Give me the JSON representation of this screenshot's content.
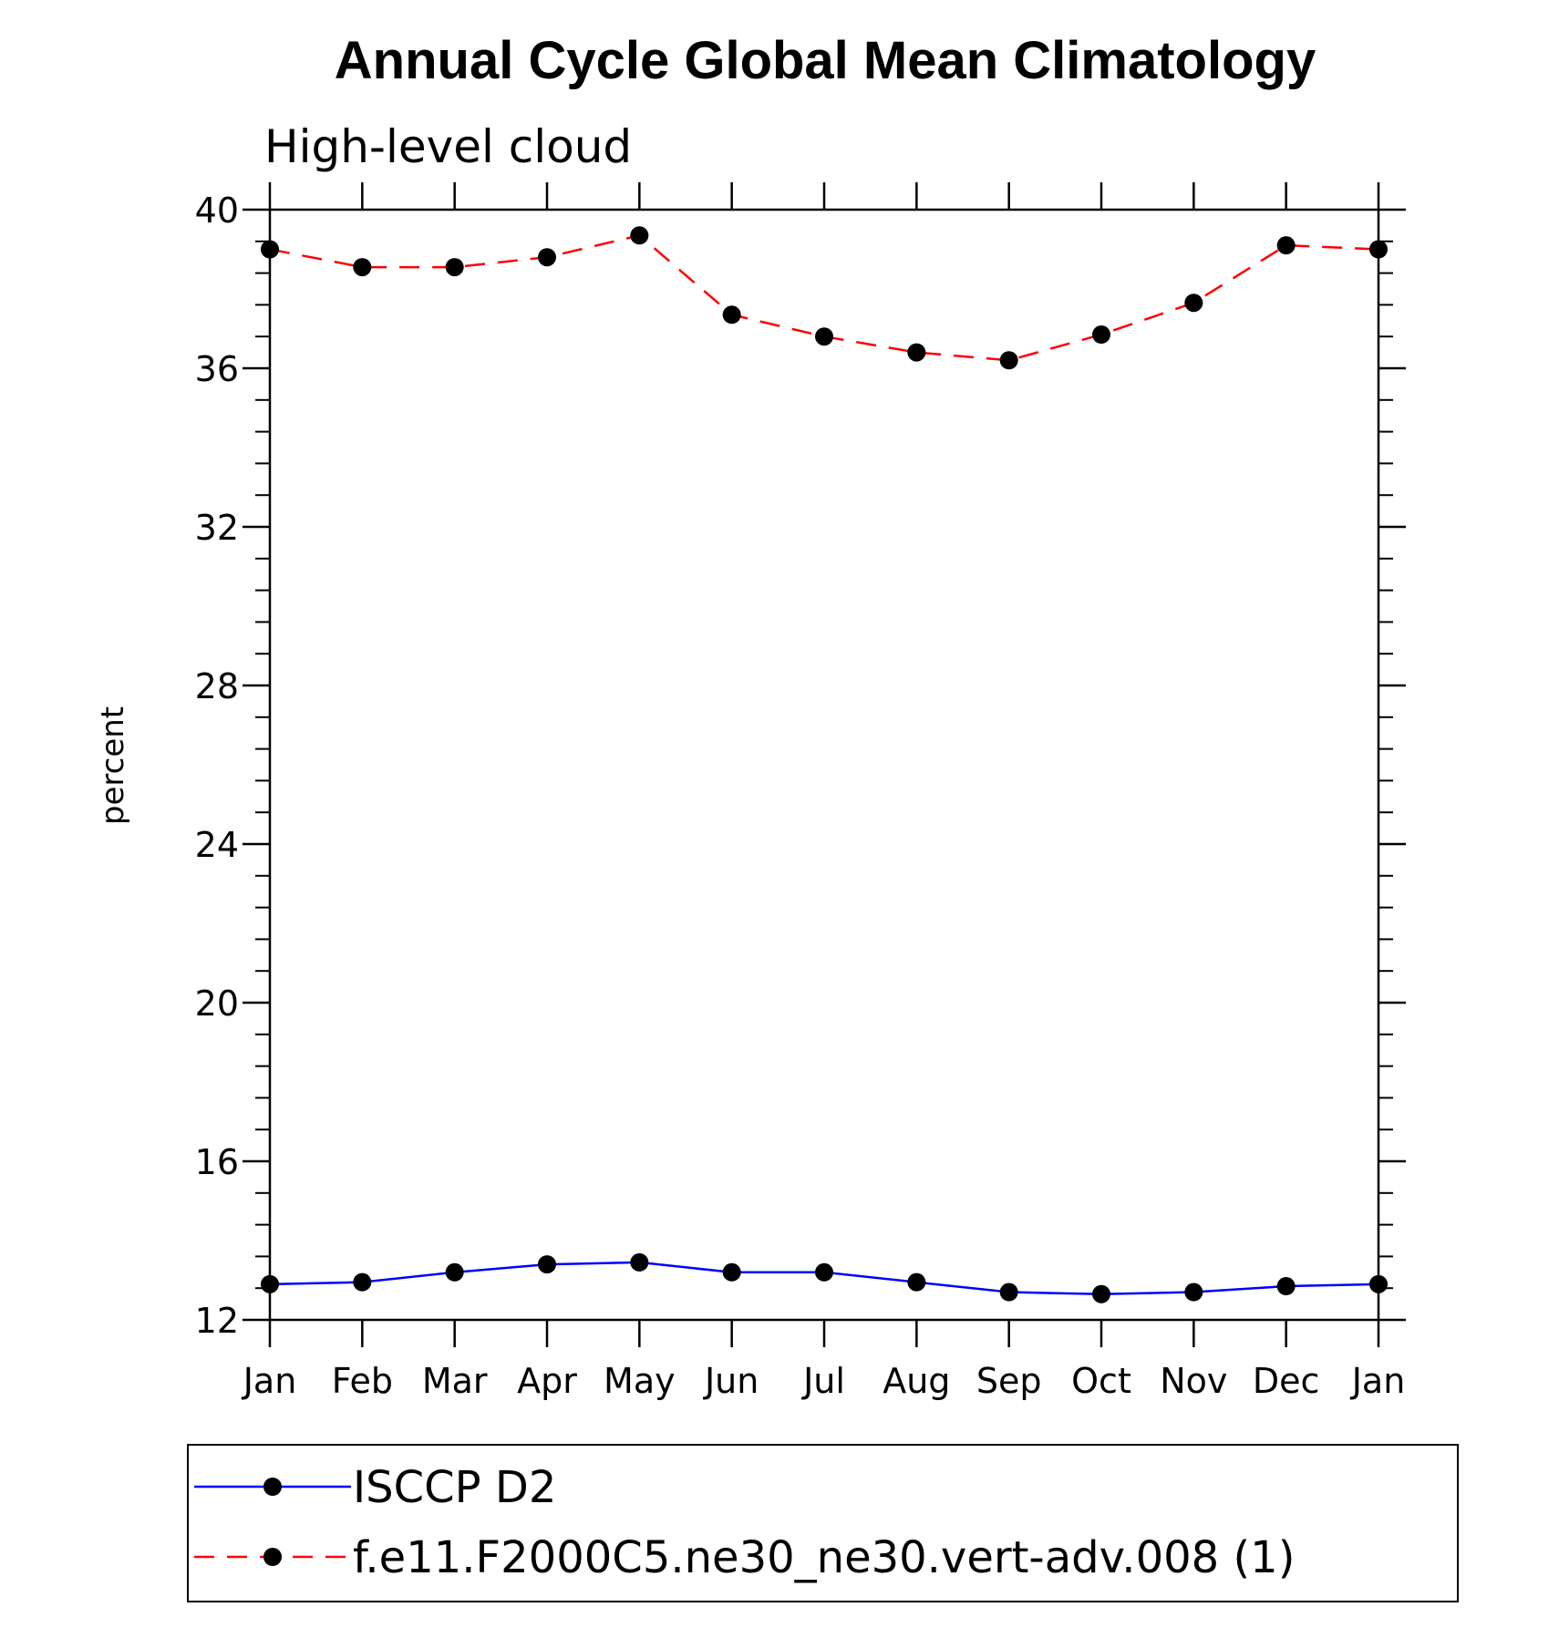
{
  "chart_data": {
    "type": "line",
    "title": "Annual Cycle Global Mean Climatology",
    "subtitle": "High-level cloud",
    "xlabel": "",
    "ylabel": "percent",
    "categories": [
      "Jan",
      "Feb",
      "Mar",
      "Apr",
      "May",
      "Jun",
      "Jul",
      "Aug",
      "Sep",
      "Oct",
      "Nov",
      "Dec",
      "Jan"
    ],
    "ylim": [
      12,
      40
    ],
    "yticks": [
      12,
      16,
      20,
      24,
      28,
      32,
      36,
      40
    ],
    "ytick_labels": [
      "12",
      "16",
      "20",
      "24",
      "28",
      "32",
      "36",
      "40"
    ],
    "grid": false,
    "legend_position": "bottom",
    "series": [
      {
        "name": "ISCCP D2",
        "color": "#0000ff",
        "line_style": "solid",
        "marker": "filled-circle",
        "values": [
          12.9,
          12.95,
          13.2,
          13.4,
          13.45,
          13.2,
          13.2,
          12.95,
          12.7,
          12.65,
          12.7,
          12.85,
          12.9
        ]
      },
      {
        "name": "f.e11.F2000C5.ne30_ne30.vert-adv.008 (1)",
        "color": "#ff0000",
        "line_style": "dashed",
        "marker": "filled-circle",
        "values": [
          39.0,
          38.55,
          38.55,
          38.8,
          39.35,
          37.35,
          36.8,
          36.4,
          36.2,
          36.85,
          37.65,
          39.1,
          39.0
        ]
      }
    ]
  }
}
